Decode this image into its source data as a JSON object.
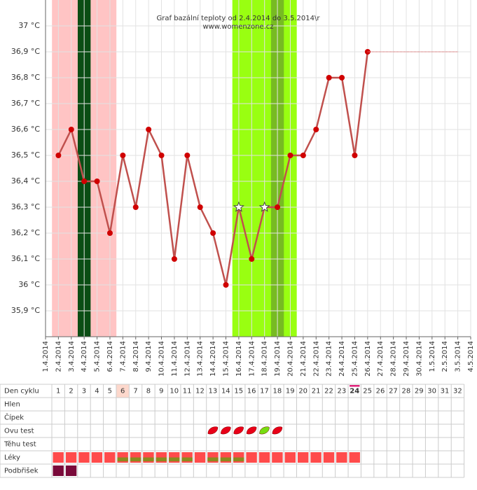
{
  "chart_data": {
    "type": "line",
    "title": "Graf bazální teploty od 2.4.2014 do 3.5.2014\\r",
    "subtitle": "www.womenzone.cz",
    "x": [
      "1.4.2014",
      "2.4.2014",
      "3.4.2014",
      "4.4.2014",
      "5.4.2014",
      "6.4.2014",
      "7.4.2014",
      "8.4.2014",
      "9.4.2014",
      "10.4.2014",
      "11.4.2014",
      "12.4.2014",
      "13.4.2014",
      "14.4.2014",
      "15.4.2014",
      "16.4.2014",
      "17.4.2014",
      "18.4.2014",
      "19.4.2014",
      "20.4.2014",
      "21.4.2014",
      "22.4.2014",
      "23.4.2014",
      "24.4.2014",
      "25.4.2014",
      "26.4.2014",
      "27.4.2014",
      "28.4.2014",
      "29.4.2014",
      "30.4.2014",
      "1.5.2014",
      "2.5.2014",
      "3.5.2014",
      "4.5.2014"
    ],
    "series": [
      {
        "color": "#c0504d",
        "marker_color": "#d00000",
        "values": [
          null,
          36.5,
          36.6,
          36.4,
          36.4,
          36.2,
          36.5,
          36.3,
          36.6,
          36.5,
          36.1,
          36.5,
          36.3,
          36.2,
          36.0,
          36.3,
          36.1,
          36.3,
          36.3,
          36.5,
          36.5,
          36.6,
          36.8,
          36.8,
          36.5,
          36.9,
          null,
          null,
          null,
          null,
          null,
          null,
          null,
          null
        ]
      },
      {
        "color": "#e08080",
        "dotted": true,
        "values": [
          null,
          null,
          null,
          null,
          null,
          null,
          null,
          null,
          null,
          null,
          null,
          null,
          null,
          null,
          null,
          null,
          null,
          null,
          null,
          null,
          null,
          null,
          null,
          null,
          null,
          36.9,
          null,
          null,
          null,
          null,
          null,
          null,
          36.9,
          null
        ]
      }
    ],
    "star_x": [
      "16.4.2014",
      "18.4.2014"
    ],
    "bands": [
      {
        "start": "2.4.2014",
        "end": "6.4.2014",
        "color": "#ffc4c4"
      },
      {
        "start": "4.4.2014",
        "end": "4.4.2014",
        "color": "#0a4d14"
      },
      {
        "start": "16.4.2014",
        "end": "20.4.2014",
        "color": "#99ff11"
      },
      {
        "start": "19.4.2014",
        "end": "19.4.2014",
        "color": "#77bb22"
      }
    ],
    "ylim": [
      35.8,
      37.1
    ],
    "yticks": [
      {
        "value": 35.9,
        "label": "35,9 °C"
      },
      {
        "value": 36.0,
        "label": "36 °C"
      },
      {
        "value": 36.1,
        "label": "36,1 °C"
      },
      {
        "value": 36.2,
        "label": "36,2 °C"
      },
      {
        "value": 36.3,
        "label": "36,3 °C"
      },
      {
        "value": 36.4,
        "label": "36,4 °C"
      },
      {
        "value": 36.5,
        "label": "36,5 °C"
      },
      {
        "value": 36.6,
        "label": "36,6 °C"
      },
      {
        "value": 36.7,
        "label": "36,7 °C"
      },
      {
        "value": 36.8,
        "label": "36,8 °C"
      },
      {
        "value": 36.9,
        "label": "36,9 °C"
      },
      {
        "value": 37.0,
        "label": "37 °C"
      }
    ],
    "grid": true
  },
  "table": {
    "row_labels": [
      "Den cyklu",
      "Hlen",
      "Čípek",
      "Ovu test",
      "Těhu test",
      "Léky",
      "Podbřišek"
    ],
    "days": [
      1,
      2,
      3,
      4,
      5,
      6,
      7,
      8,
      9,
      10,
      11,
      12,
      13,
      14,
      15,
      16,
      17,
      18,
      19,
      20,
      21,
      22,
      23,
      24,
      25,
      26,
      27,
      28,
      29,
      30,
      31,
      32
    ],
    "highlight_day": 6,
    "today_day": 24,
    "ovu_test": [
      {
        "day": 13,
        "color": "#e80018"
      },
      {
        "day": 14,
        "color": "#e80018"
      },
      {
        "day": 15,
        "color": "#e80018"
      },
      {
        "day": 16,
        "color": "#e80018"
      },
      {
        "day": 17,
        "color": "#77dd11"
      },
      {
        "day": 18,
        "color": "#e80018"
      }
    ],
    "leky_days": [
      1,
      2,
      3,
      4,
      5,
      6,
      7,
      8,
      9,
      10,
      11,
      12,
      13,
      14,
      15,
      16,
      17,
      18,
      19,
      20,
      21,
      22,
      23,
      24
    ],
    "leky_olive_days": [
      6,
      7,
      8,
      9,
      10,
      11,
      13,
      14,
      15
    ],
    "podbrisek_days": [
      1,
      2
    ]
  }
}
